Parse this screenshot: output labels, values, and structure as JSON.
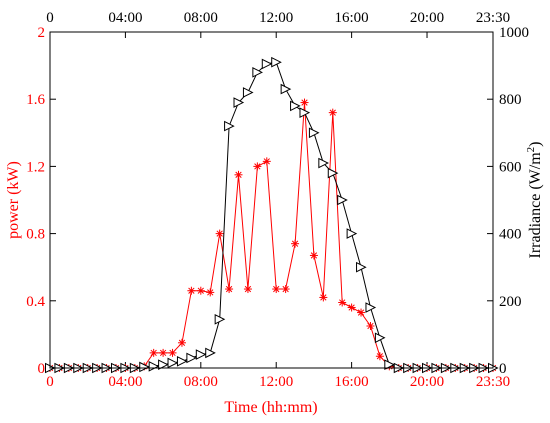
{
  "chart_data": {
    "type": "line",
    "xlabel": "Time (hh:mm)",
    "ylabel_left": "power (kW)",
    "ylabel_right": "Irradiance (W/m",
    "ylabel_right_sup": "2",
    "ylabel_right_close": ")",
    "xlim": [
      0,
      23.5
    ],
    "ylim_left": [
      0,
      2
    ],
    "ylim_right": [
      0,
      1000
    ],
    "x_ticks": [
      {
        "value": 0,
        "label": "0"
      },
      {
        "value": 4,
        "label": "04:00"
      },
      {
        "value": 8,
        "label": "08:00"
      },
      {
        "value": 12,
        "label": "12:00"
      },
      {
        "value": 16,
        "label": "16:00"
      },
      {
        "value": 20,
        "label": "20:00"
      },
      {
        "value": 23.5,
        "label": "23:30"
      }
    ],
    "y_ticks_left": [
      {
        "value": 0,
        "label": "0"
      },
      {
        "value": 0.4,
        "label": "0.4"
      },
      {
        "value": 0.8,
        "label": "0.8"
      },
      {
        "value": 1.2,
        "label": "1.2"
      },
      {
        "value": 1.6,
        "label": "1.6"
      },
      {
        "value": 2,
        "label": "2"
      }
    ],
    "y_ticks_right": [
      {
        "value": 0,
        "label": "0"
      },
      {
        "value": 200,
        "label": "200"
      },
      {
        "value": 400,
        "label": "400"
      },
      {
        "value": 600,
        "label": "600"
      },
      {
        "value": 800,
        "label": "800"
      },
      {
        "value": 1000,
        "label": "1000"
      }
    ],
    "grid": false,
    "series": [
      {
        "axis": "left",
        "marker": "asterisk",
        "color": "#ff0000",
        "x": [
          0,
          0.5,
          1,
          1.5,
          2,
          2.5,
          3,
          3.5,
          4,
          4.5,
          5,
          5.5,
          6,
          6.5,
          7,
          7.5,
          8,
          8.5,
          9,
          9.5,
          10,
          10.5,
          11,
          11.5,
          12,
          12.5,
          13,
          13.5,
          14,
          14.5,
          15,
          15.5,
          16,
          16.5,
          17,
          17.5,
          18,
          18.5,
          19,
          19.5,
          20,
          20.5,
          21,
          21.5,
          22,
          22.5,
          23,
          23.5
        ],
        "values": [
          0,
          0,
          0,
          0,
          0,
          0,
          0,
          0,
          0,
          0,
          0.01,
          0.09,
          0.09,
          0.09,
          0.15,
          0.46,
          0.46,
          0.45,
          0.8,
          0.47,
          1.15,
          0.47,
          1.2,
          1.23,
          0.47,
          0.47,
          0.74,
          1.58,
          0.67,
          0.42,
          1.52,
          0.39,
          0.36,
          0.33,
          0.25,
          0.07,
          0.01,
          0,
          0,
          0,
          0,
          0,
          0,
          0,
          0,
          0,
          0,
          0
        ]
      },
      {
        "axis": "right",
        "marker": "triangle-right",
        "color": "#000000",
        "x": [
          0,
          0.5,
          1,
          1.5,
          2,
          2.5,
          3,
          3.5,
          4,
          4.5,
          5,
          5.5,
          6,
          6.5,
          7,
          7.5,
          8,
          8.5,
          9,
          9.5,
          10,
          10.5,
          11,
          11.5,
          12,
          12.5,
          13,
          13.5,
          14,
          14.5,
          15,
          15.5,
          16,
          16.5,
          17,
          17.5,
          18,
          18.5,
          19,
          19.5,
          20,
          20.5,
          21,
          21.5,
          22,
          22.5,
          23,
          23.5
        ],
        "values": [
          0,
          0,
          0,
          0,
          0,
          0,
          0,
          0,
          0,
          0,
          3,
          5,
          10,
          15,
          20,
          30,
          40,
          45,
          145,
          720,
          790,
          820,
          880,
          905,
          910,
          830,
          780,
          760,
          700,
          610,
          580,
          500,
          400,
          300,
          180,
          90,
          10,
          0,
          0,
          0,
          0,
          0,
          0,
          0,
          0,
          0,
          0,
          0
        ]
      }
    ]
  }
}
